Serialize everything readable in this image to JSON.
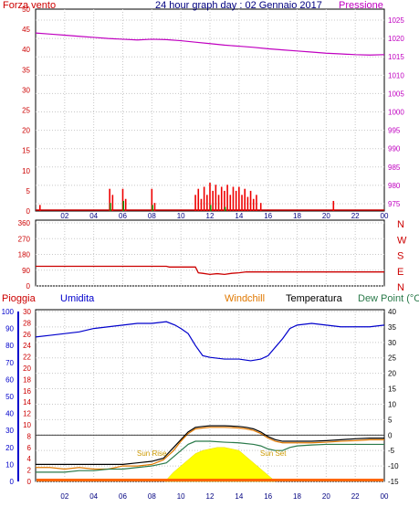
{
  "title": "24 hour graph day : 02 Gennaio 2017",
  "x_ticks": [
    "02",
    "04",
    "06",
    "08",
    "10",
    "12",
    "14",
    "16",
    "18",
    "20",
    "22",
    "00"
  ],
  "chart_data": [
    {
      "type": "line",
      "panel": "wind-pressure",
      "left_label": "Forza vento",
      "right_label": "Pressione",
      "y_left_ticks": [
        0,
        5,
        10,
        15,
        20,
        25,
        30,
        35,
        40,
        45,
        50
      ],
      "y_right_ticks": [
        975,
        980,
        985,
        990,
        995,
        1000,
        1005,
        1010,
        1015,
        1020,
        1025
      ],
      "ylim_left": [
        0,
        50
      ],
      "ylim_right": [
        973,
        1028
      ],
      "series": [
        {
          "name": "Pressione",
          "color": "#c000c0",
          "x": [
            0,
            1,
            2,
            3,
            4,
            5,
            6,
            7,
            8,
            9,
            10,
            11,
            12,
            13,
            14,
            15,
            16,
            17,
            18,
            19,
            20,
            21,
            22,
            23,
            24
          ],
          "y": [
            1021.5,
            1021.2,
            1020.9,
            1020.6,
            1020.3,
            1020,
            1019.8,
            1019.6,
            1019.8,
            1019.7,
            1019.4,
            1019,
            1018.6,
            1018.2,
            1017.9,
            1017.6,
            1017.2,
            1016.9,
            1016.6,
            1016.3,
            1016,
            1015.8,
            1015.6,
            1015.5,
            1015.6
          ]
        }
      ],
      "wind_gust_bars": [
        {
          "x": 0.3,
          "v": 1.5
        },
        {
          "x": 5.1,
          "v": 5.5
        },
        {
          "x": 5.3,
          "v": 4
        },
        {
          "x": 6.0,
          "v": 5.5
        },
        {
          "x": 6.2,
          "v": 3
        },
        {
          "x": 8.0,
          "v": 5.5
        },
        {
          "x": 8.2,
          "v": 2
        },
        {
          "x": 11.0,
          "v": 4
        },
        {
          "x": 11.2,
          "v": 5.5
        },
        {
          "x": 11.4,
          "v": 3
        },
        {
          "x": 11.6,
          "v": 6
        },
        {
          "x": 11.8,
          "v": 4
        },
        {
          "x": 12.0,
          "v": 7
        },
        {
          "x": 12.2,
          "v": 5
        },
        {
          "x": 12.4,
          "v": 6.5
        },
        {
          "x": 12.6,
          "v": 4
        },
        {
          "x": 12.8,
          "v": 6
        },
        {
          "x": 13.0,
          "v": 5
        },
        {
          "x": 13.2,
          "v": 6.5
        },
        {
          "x": 13.4,
          "v": 4
        },
        {
          "x": 13.6,
          "v": 6
        },
        {
          "x": 13.8,
          "v": 5
        },
        {
          "x": 14.0,
          "v": 6
        },
        {
          "x": 14.2,
          "v": 4
        },
        {
          "x": 14.4,
          "v": 5.5
        },
        {
          "x": 14.6,
          "v": 3.5
        },
        {
          "x": 14.8,
          "v": 5
        },
        {
          "x": 15.0,
          "v": 3
        },
        {
          "x": 15.2,
          "v": 4
        },
        {
          "x": 15.5,
          "v": 2
        },
        {
          "x": 20.5,
          "v": 2.5
        }
      ],
      "wind_mean_bars": [
        {
          "x": 5.1,
          "v": 2
        },
        {
          "x": 6.0,
          "v": 2.5
        },
        {
          "x": 8.0,
          "v": 1.5
        },
        {
          "x": 12.0,
          "v": 1.5
        },
        {
          "x": 13.0,
          "v": 1
        }
      ]
    },
    {
      "type": "line",
      "panel": "wind-direction",
      "y_left_ticks": [
        0,
        90,
        180,
        270,
        360
      ],
      "right_labels": [
        "N",
        "W",
        "S",
        "E",
        "N"
      ],
      "ylim": [
        0,
        360
      ],
      "series": [
        {
          "name": "Direzione",
          "color": "#cc0000",
          "x": [
            0,
            9,
            9.2,
            11,
            11.2,
            11.5,
            12,
            12.5,
            13,
            13.5,
            14,
            14.5,
            15,
            24
          ],
          "y": [
            112,
            112,
            108,
            108,
            75,
            72,
            66,
            70,
            66,
            72,
            75,
            80,
            80,
            80
          ]
        }
      ]
    },
    {
      "type": "line",
      "panel": "humidity-temp",
      "labels": {
        "rain": "Pioggia",
        "humidity": "Umidita",
        "windchill": "Windchill",
        "temperature": "Temperatura",
        "dewpoint": "Dew Point (°C"
      },
      "y_blue_ticks": [
        0,
        10,
        20,
        30,
        40,
        50,
        60,
        70,
        80,
        90,
        100
      ],
      "y_red_ticks": [
        0,
        2,
        4,
        6,
        8,
        10,
        12,
        14,
        16,
        18,
        20,
        22,
        24,
        26,
        28,
        30
      ],
      "y_right_ticks": [
        -15,
        -10,
        -5,
        0,
        5,
        10,
        15,
        20,
        25,
        30,
        35,
        40
      ],
      "ylim_humidity": [
        0,
        100
      ],
      "ylim_temp": [
        -15,
        40
      ],
      "sun_rise": "Sun Rise",
      "sun_set": "Sun Set",
      "series": [
        {
          "name": "Umidita",
          "color": "#0000cc",
          "x": [
            0,
            1,
            2,
            3,
            4,
            5,
            6,
            7,
            8,
            9,
            9.6,
            10,
            10.5,
            11,
            11.5,
            12,
            13,
            14,
            14.8,
            15.5,
            16,
            16.5,
            17,
            17.5,
            18,
            19,
            20,
            21,
            22,
            23,
            24
          ],
          "y": [
            85,
            86,
            87,
            88,
            90,
            91,
            92,
            93,
            93,
            94,
            92,
            90,
            87,
            80,
            74,
            73,
            72,
            72,
            71,
            72,
            74,
            79,
            84,
            90,
            92,
            93,
            92,
            91,
            91,
            91,
            92
          ]
        },
        {
          "name": "Temperatura",
          "color": "#000000",
          "x": [
            0,
            1,
            2,
            3,
            4,
            5,
            6,
            7,
            8,
            8.8,
            9.5,
            10,
            10.5,
            11,
            11.5,
            12,
            13,
            14,
            14.5,
            15,
            15.5,
            16,
            16.5,
            17,
            18,
            19,
            20,
            21,
            22,
            23,
            24
          ],
          "y": [
            -9.5,
            -9.5,
            -9.5,
            -9.5,
            -9.5,
            -9.5,
            -9.5,
            -9,
            -8.5,
            -7.5,
            -4,
            -1.5,
            1,
            2.5,
            2.8,
            3,
            3,
            2.8,
            2.5,
            2,
            1,
            -0.5,
            -1.5,
            -2,
            -2,
            -2,
            -1.8,
            -1.5,
            -1.2,
            -1,
            -1
          ]
        },
        {
          "name": "Windchill",
          "color": "#e07800",
          "x": [
            0,
            1,
            2,
            3,
            4,
            5,
            6,
            7,
            8,
            8.8,
            9.5,
            10,
            10.5,
            11,
            11.5,
            12,
            13,
            14,
            14.5,
            15,
            15.5,
            16,
            16.5,
            17,
            18,
            19,
            20,
            21,
            22,
            23,
            24
          ],
          "y": [
            -10.5,
            -10.5,
            -11,
            -10.5,
            -11,
            -11,
            -10,
            -10,
            -9.5,
            -8,
            -5,
            -2,
            0.5,
            2,
            2.3,
            2.5,
            2.5,
            2.3,
            2,
            1.5,
            0.5,
            -1,
            -2,
            -2.5,
            -2.5,
            -2.5,
            -2.3,
            -2,
            -1.8,
            -1.5,
            -1.5
          ]
        },
        {
          "name": "Dew Point",
          "color": "#2a7a4a",
          "x": [
            0,
            1,
            2,
            3,
            4,
            5,
            6,
            7,
            8,
            9,
            9.5,
            10,
            10.5,
            11,
            12,
            13,
            14,
            15,
            15.5,
            16,
            16.5,
            17,
            17.5,
            18,
            19,
            20,
            21,
            22,
            23,
            24
          ],
          "y": [
            -12,
            -12,
            -12,
            -11.5,
            -11.5,
            -11,
            -11,
            -10.5,
            -10,
            -9,
            -7,
            -5,
            -3,
            -2,
            -2,
            -2.3,
            -2.5,
            -3,
            -3.5,
            -4.5,
            -5,
            -5,
            -4,
            -3.5,
            -3.2,
            -3,
            -3,
            -3,
            -3,
            -3
          ]
        },
        {
          "name": "Zero",
          "color": "#000000",
          "x": [
            0,
            24
          ],
          "y": [
            0,
            0
          ]
        }
      ],
      "solar": {
        "color": "#ffff00",
        "x": [
          8.9,
          9.5,
          10,
          10.5,
          11,
          11.5,
          12,
          12.5,
          13,
          13.5,
          14,
          14.5,
          15,
          15.5,
          16,
          16.5
        ],
        "y": [
          -15,
          -12,
          -10,
          -8,
          -6,
          -5,
          -4.5,
          -4,
          -4,
          -4.5,
          -5,
          -7,
          -9,
          -11,
          -13,
          -15
        ]
      }
    }
  ]
}
